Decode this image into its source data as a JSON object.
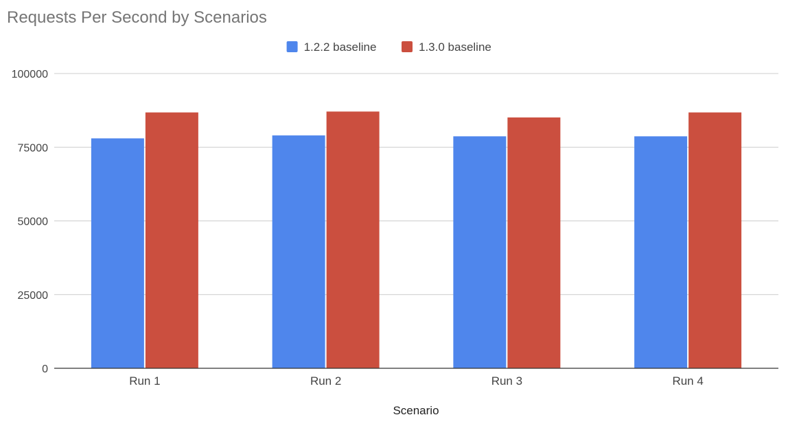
{
  "chart_data": {
    "type": "bar",
    "title": "Requests Per Second by Scenarios",
    "xlabel": "Scenario",
    "ylabel": "",
    "categories": [
      "Run 1",
      "Run 2",
      "Run 3",
      "Run 4"
    ],
    "series": [
      {
        "name": "1.2.2 baseline",
        "color": "#4f86ec",
        "values": [
          78000,
          79000,
          78700,
          78700
        ]
      },
      {
        "name": "1.3.0 baseline",
        "color": "#cb4f3f",
        "values": [
          86800,
          87100,
          85100,
          86800
        ]
      }
    ],
    "ylim": [
      0,
      100000
    ],
    "yticks": [
      "0",
      "25000",
      "50000",
      "75000",
      "100000"
    ],
    "grid": true,
    "legend_position": "top-center"
  }
}
